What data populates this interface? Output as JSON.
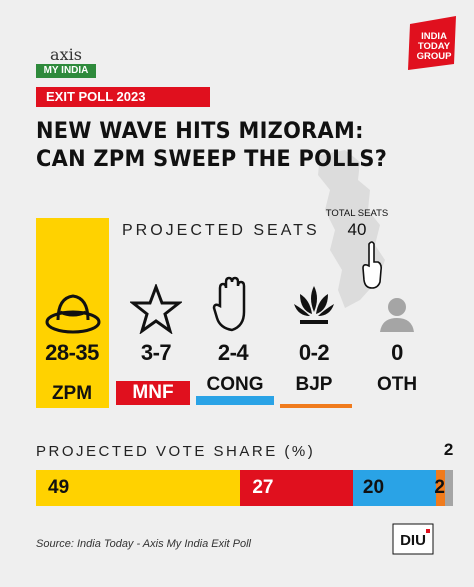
{
  "branding": {
    "axis_logo_top": "axis",
    "axis_logo_bottom": "MY INDIA",
    "publisher_logo": "INDIA TODAY GROUP",
    "diu_logo": "DIU"
  },
  "tag": "EXIT POLL 2023",
  "title_line1": "NEW WAVE HITS MIZORAM:",
  "title_line2": "CAN ZPM SWEEP THE POLLS?",
  "seats_section": {
    "label": "PROJECTED SEATS",
    "total_label": "TOTAL SEATS",
    "total_value": "40"
  },
  "vote_section": {
    "label": "PROJECTED VOTE SHARE (%)"
  },
  "source": "Source: India Today - Axis My India Exit Poll",
  "colors": {
    "ZPM": "#ffd200",
    "MNF": "#e0101e",
    "CONG": "#2aa3e6",
    "BJP": "#f07b1d",
    "OTH": "#a5a5a5"
  },
  "chart_data": [
    {
      "type": "table",
      "title": "PROJECTED SEATS",
      "categories": [
        "ZPM",
        "MNF",
        "CONG",
        "BJP",
        "OTH"
      ],
      "seat_ranges": [
        "28-35",
        "3-7",
        "2-4",
        "0-2",
        "0"
      ],
      "icons": [
        "hat-icon",
        "star-icon",
        "hand-icon",
        "lotus-icon",
        "person-icon"
      ],
      "total": 40
    },
    {
      "type": "bar",
      "stacked": true,
      "title": "PROJECTED VOTE SHARE (%)",
      "categories": [
        "ZPM",
        "MNF",
        "CONG",
        "BJP",
        "OTH"
      ],
      "values": [
        49,
        27,
        20,
        2,
        2
      ],
      "data_labels": [
        "49",
        "27",
        "20",
        "2",
        "2"
      ]
    }
  ]
}
